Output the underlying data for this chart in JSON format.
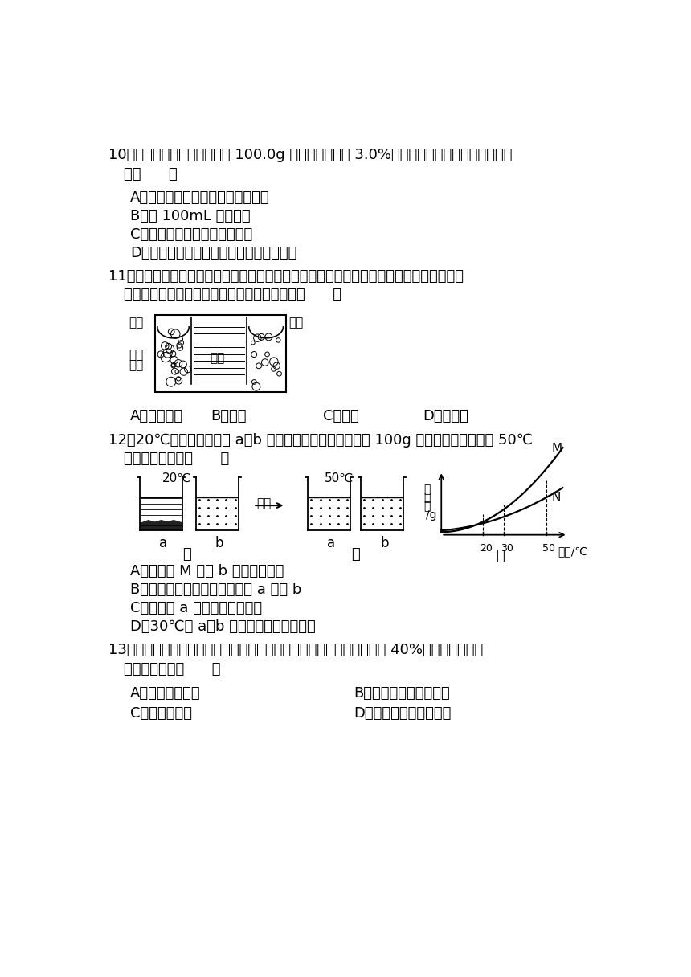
{
  "bg_color": "#ffffff",
  "q10_line1": "10．实验室用硝酸钒固体配制 100.0g 溶质质量分数为 3.0%的硝酸钒溶液，下列说法正确的",
  "q10_line2": "是（      ）",
  "q10_A": "A．将固体放于托盘天平的右盘称取",
  "q10_B": "B．用 100mL 量筒量水",
  "q10_C": "C．将固体直接投入量筒中溶解",
  "q10_D": "D．将配好的溶液装入用水清洗过试剂瓶中",
  "q11_line1": "11．如图是一个一次性加热杯的示意图。当水袋破裂时，水与固体碎块混合，杯内食物温度",
  "q11_line2": "明显上升。制造此加热杯可选用的固体碎块是（      ）",
  "q11_A": "A．氮氧化鼓",
  "q11_B": "B．食盐",
  "q11_C": "C．蔗糖",
  "q11_D": "D．硝酸锨",
  "label_shuibag_left": "水袋",
  "label_shuibag_right": "水袋",
  "label_solid": "固体",
  "label_chunks": "碎块",
  "label_food": "食物",
  "q12_line1": "12．20℃时，将等质量的 a、b 两种固体，分别加入到盛有 100g 水的烧杯中，升温到 50℃",
  "q12_line2": "时，现象如图乙（      ）",
  "q12_A": "A．图丙中 M 表示 b 的溶解度曲线",
  "q12_B": "B．图甲溶液中溶质的质量分数 a 大于 b",
  "q12_C": "C．图乙中 a 可能是不饱和溶液",
  "q12_D": "D．30℃时 a、b 溶液溶质质量分数相等",
  "label_20C": "20℃",
  "label_50C": "50℃",
  "label_jia": "甲",
  "label_yi": "乙",
  "label_bing": "丙",
  "label_shengwen": "升温",
  "label_a": "a",
  "label_b": "b",
  "label_rjd": "溶\n解\n度\n/g",
  "label_wendu": "温度/℃",
  "label_M": "M",
  "label_N": "N",
  "q13_line1": "13．室温时，有两瓶硝酸钒溶液，一瓶为饱和溶液（溶质的质量分数为 40%），无法区分这",
  "q13_line2": "两种溶液的是（      ）",
  "q13_A": "A．加一定量的水",
  "q13_B": "B．加入少量硝酸钒晶体",
  "q13_C": "C．略降低温度",
  "q13_D": "D．室温时，蜥发少量水"
}
